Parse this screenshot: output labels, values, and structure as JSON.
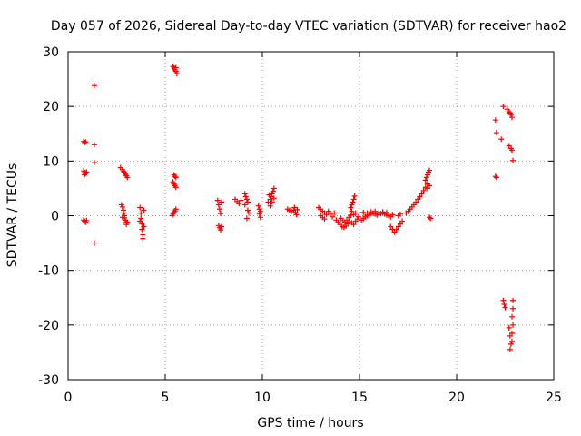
{
  "chart_data": {
    "type": "scatter",
    "title": "Day 057 of 2026, Sidereal Day-to-day VTEC variation (SDTVAR) for receiver hao2",
    "xlabel": "GPS time / hours",
    "ylabel": "SDTVAR / TECUs",
    "xlim": [
      0,
      25
    ],
    "ylim": [
      -30,
      30
    ],
    "xticks": [
      0,
      5,
      10,
      15,
      20,
      25
    ],
    "yticks": [
      -30,
      -20,
      -10,
      0,
      10,
      20,
      30
    ],
    "grid": true,
    "marker": "+",
    "color": "#ff0000",
    "series": [
      {
        "points": [
          [
            0.8,
            13.6
          ],
          [
            0.85,
            13.4
          ],
          [
            0.9,
            13.5
          ],
          [
            0.8,
            8.2
          ],
          [
            0.85,
            7.9
          ],
          [
            0.9,
            7.7
          ],
          [
            0.95,
            8.0
          ],
          [
            0.85,
            7.5
          ],
          [
            0.8,
            -0.8
          ],
          [
            0.85,
            -1.0
          ],
          [
            0.9,
            -1.2
          ],
          [
            0.95,
            -0.9
          ],
          [
            1.35,
            23.8
          ],
          [
            1.35,
            13.0
          ],
          [
            1.35,
            9.7
          ],
          [
            1.35,
            -5.0
          ],
          [
            2.7,
            8.8
          ],
          [
            2.8,
            8.4
          ],
          [
            2.85,
            8.1
          ],
          [
            2.9,
            7.9
          ],
          [
            2.95,
            7.6
          ],
          [
            3.0,
            7.3
          ],
          [
            3.05,
            7.0
          ],
          [
            2.75,
            2.0
          ],
          [
            2.8,
            1.6
          ],
          [
            2.85,
            1.0
          ],
          [
            2.85,
            0.5
          ],
          [
            2.9,
            0.0
          ],
          [
            2.9,
            -0.4
          ],
          [
            2.95,
            -0.8
          ],
          [
            3.0,
            -1.2
          ],
          [
            3.0,
            -1.6
          ],
          [
            3.05,
            -1.2
          ],
          [
            2.8,
            -0.3
          ],
          [
            3.7,
            1.5
          ],
          [
            3.75,
            0.5
          ],
          [
            3.75,
            -0.5
          ],
          [
            3.8,
            -1.5
          ],
          [
            3.8,
            -2.5
          ],
          [
            3.85,
            -3.5
          ],
          [
            3.85,
            -4.2
          ],
          [
            3.9,
            -2.0
          ],
          [
            3.9,
            1.0
          ],
          [
            3.7,
            -1.0
          ],
          [
            5.4,
            27.3
          ],
          [
            5.45,
            27.0
          ],
          [
            5.5,
            26.7
          ],
          [
            5.55,
            26.4
          ],
          [
            5.6,
            26.0
          ],
          [
            5.55,
            27.1
          ],
          [
            5.45,
            7.5
          ],
          [
            5.5,
            7.2
          ],
          [
            5.55,
            7.0
          ],
          [
            5.4,
            6.2
          ],
          [
            5.45,
            5.8
          ],
          [
            5.5,
            5.5
          ],
          [
            5.55,
            5.2
          ],
          [
            5.35,
            0.0
          ],
          [
            5.4,
            0.3
          ],
          [
            5.45,
            0.6
          ],
          [
            5.5,
            0.9
          ],
          [
            5.55,
            1.2
          ],
          [
            7.7,
            2.8
          ],
          [
            7.75,
            2.0
          ],
          [
            7.8,
            1.2
          ],
          [
            7.85,
            0.4
          ],
          [
            7.9,
            2.5
          ],
          [
            7.75,
            -1.8
          ],
          [
            7.8,
            -2.2
          ],
          [
            7.85,
            -2.6
          ],
          [
            7.9,
            -2.0
          ],
          [
            8.6,
            3.0
          ],
          [
            8.7,
            2.6
          ],
          [
            8.8,
            2.2
          ],
          [
            8.9,
            2.8
          ],
          [
            9.1,
            4.0
          ],
          [
            9.15,
            3.5
          ],
          [
            9.2,
            3.0
          ],
          [
            9.25,
            2.5
          ],
          [
            9.1,
            2.0
          ],
          [
            9.25,
            1.0
          ],
          [
            9.3,
            0.5
          ],
          [
            9.2,
            -0.5
          ],
          [
            9.8,
            1.8
          ],
          [
            9.85,
            1.2
          ],
          [
            9.9,
            0.8
          ],
          [
            9.85,
            0.3
          ],
          [
            9.9,
            -0.3
          ],
          [
            10.3,
            2.5
          ],
          [
            10.4,
            3.0
          ],
          [
            10.45,
            3.5
          ],
          [
            10.5,
            4.0
          ],
          [
            10.55,
            4.5
          ],
          [
            10.6,
            5.0
          ],
          [
            10.4,
            1.8
          ],
          [
            10.5,
            2.5
          ],
          [
            10.6,
            3.2
          ],
          [
            10.35,
            3.8
          ],
          [
            11.3,
            1.2
          ],
          [
            11.4,
            1.0
          ],
          [
            11.5,
            0.8
          ],
          [
            11.6,
            1.0
          ],
          [
            11.7,
            0.6
          ],
          [
            11.8,
            1.1
          ],
          [
            11.65,
            1.5
          ],
          [
            11.75,
            0.2
          ],
          [
            12.9,
            1.5
          ],
          [
            13.0,
            1.2
          ],
          [
            13.1,
            0.8
          ],
          [
            13.2,
            0.5
          ],
          [
            13.0,
            0.0
          ],
          [
            13.1,
            -0.3
          ],
          [
            13.2,
            -0.6
          ],
          [
            13.3,
            0.2
          ],
          [
            13.4,
            0.8
          ],
          [
            13.5,
            0.4
          ],
          [
            13.6,
            -0.2
          ],
          [
            13.7,
            0.5
          ],
          [
            13.8,
            -0.8
          ],
          [
            13.9,
            -1.2
          ],
          [
            14.0,
            -1.6
          ],
          [
            14.1,
            -2.0
          ],
          [
            14.2,
            -2.1
          ],
          [
            14.3,
            -1.9
          ],
          [
            14.4,
            -1.5
          ],
          [
            14.5,
            -1.1
          ],
          [
            14.6,
            -1.3
          ],
          [
            14.7,
            -1.6
          ],
          [
            14.8,
            -1.0
          ],
          [
            14.9,
            -0.6
          ],
          [
            14.95,
            -0.2
          ],
          [
            14.05,
            -0.5
          ],
          [
            14.15,
            -0.9
          ],
          [
            14.25,
            -1.2
          ],
          [
            14.35,
            -0.8
          ],
          [
            14.45,
            -0.3
          ],
          [
            14.55,
            0.1
          ],
          [
            14.55,
            1.5
          ],
          [
            14.6,
            2.0
          ],
          [
            14.65,
            2.5
          ],
          [
            14.7,
            3.0
          ],
          [
            14.75,
            3.6
          ],
          [
            14.6,
            0.8
          ],
          [
            14.7,
            0.2
          ],
          [
            14.8,
            0.5
          ],
          [
            15.1,
            -0.8
          ],
          [
            15.2,
            -0.5
          ],
          [
            15.3,
            -0.2
          ],
          [
            15.4,
            0.0
          ],
          [
            15.5,
            0.2
          ],
          [
            15.6,
            0.4
          ],
          [
            15.7,
            0.5
          ],
          [
            15.8,
            0.3
          ],
          [
            15.9,
            0.1
          ],
          [
            16.0,
            0.2
          ],
          [
            16.1,
            0.4
          ],
          [
            16.2,
            0.5
          ],
          [
            16.3,
            0.3
          ],
          [
            16.4,
            0.1
          ],
          [
            16.5,
            0.0
          ],
          [
            16.6,
            -0.2
          ],
          [
            16.7,
            0.2
          ],
          [
            15.2,
            0.6
          ],
          [
            15.4,
            0.5
          ],
          [
            15.6,
            0.7
          ],
          [
            15.8,
            0.8
          ],
          [
            16.0,
            0.6
          ],
          [
            16.2,
            0.7
          ],
          [
            16.4,
            0.6
          ],
          [
            16.6,
            -2.0
          ],
          [
            16.7,
            -2.5
          ],
          [
            16.8,
            -3.0
          ],
          [
            16.9,
            -2.5
          ],
          [
            17.0,
            -2.0
          ],
          [
            17.1,
            -1.5
          ],
          [
            17.2,
            -1.0
          ],
          [
            17.0,
            0.0
          ],
          [
            17.1,
            0.3
          ],
          [
            17.4,
            0.5
          ],
          [
            17.5,
            0.8
          ],
          [
            17.6,
            1.2
          ],
          [
            17.7,
            1.6
          ],
          [
            17.8,
            2.0
          ],
          [
            17.9,
            2.5
          ],
          [
            18.0,
            3.0
          ],
          [
            18.1,
            3.5
          ],
          [
            18.2,
            4.0
          ],
          [
            18.3,
            4.6
          ],
          [
            18.4,
            5.2
          ],
          [
            18.5,
            5.8
          ],
          [
            18.4,
            6.5
          ],
          [
            18.45,
            7.0
          ],
          [
            18.5,
            7.5
          ],
          [
            18.55,
            8.0
          ],
          [
            18.6,
            8.3
          ],
          [
            18.5,
            5.0
          ],
          [
            18.6,
            5.5
          ],
          [
            18.6,
            -0.3
          ],
          [
            18.65,
            -0.5
          ],
          [
            22.0,
            17.5
          ],
          [
            22.05,
            15.2
          ],
          [
            22.0,
            7.2
          ],
          [
            22.05,
            7.0
          ],
          [
            22.4,
            20.0
          ],
          [
            22.6,
            19.5
          ],
          [
            22.7,
            19.0
          ],
          [
            22.8,
            18.5
          ],
          [
            22.85,
            18.0
          ],
          [
            22.75,
            18.8
          ],
          [
            22.3,
            14.0
          ],
          [
            22.7,
            12.8
          ],
          [
            22.8,
            12.3
          ],
          [
            22.85,
            12.0
          ],
          [
            22.9,
            10.1
          ],
          [
            22.4,
            -15.5
          ],
          [
            22.45,
            -16.2
          ],
          [
            22.5,
            -16.8
          ],
          [
            22.7,
            -20.5
          ],
          [
            22.75,
            -22.0
          ],
          [
            22.8,
            -23.5
          ],
          [
            22.75,
            -24.5
          ],
          [
            22.85,
            -23.0
          ],
          [
            22.85,
            -21.5
          ],
          [
            22.9,
            -20.0
          ],
          [
            22.85,
            -18.5
          ],
          [
            22.9,
            -17.0
          ],
          [
            22.9,
            -15.5
          ]
        ]
      }
    ]
  }
}
